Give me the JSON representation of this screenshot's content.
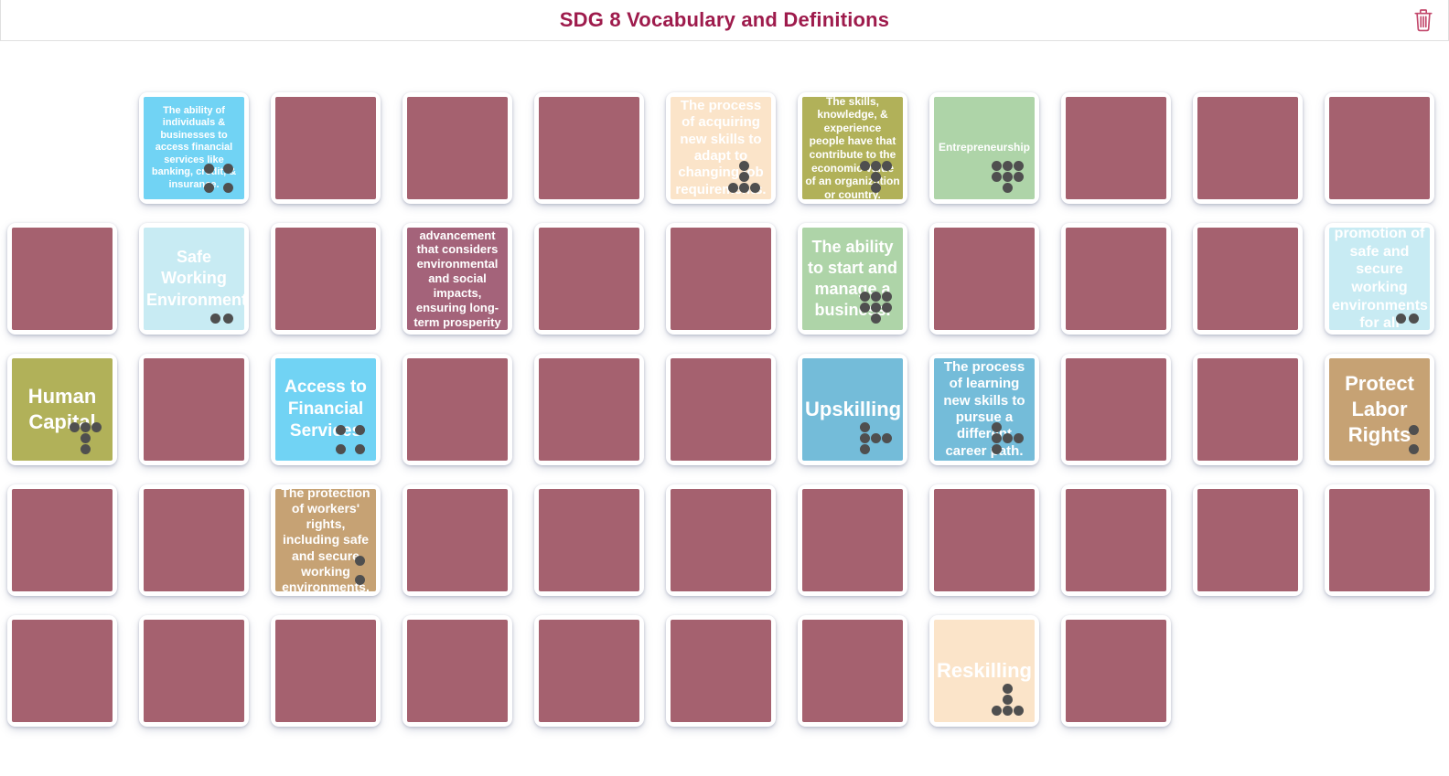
{
  "header": {
    "title": "SDG 8 Vocabulary and Definitions",
    "delete_label": "Delete board"
  },
  "colors": {
    "title": "#9E1B4C",
    "trash": "#C2476B",
    "card_back": "#A5616F",
    "card_text": "#FFFFFF",
    "dot": "#4F4F4F",
    "pair_cyan": "#71D3F4",
    "pair_light_cyan": "#C8EBF3",
    "pair_peach": "#FBE4C9",
    "pair_olive": "#B1B159",
    "pair_green": "#AED4A8",
    "pair_blue": "#74BCD9",
    "pair_tan": "#C6A274",
    "pair_mauve": "#A4637A"
  },
  "board": {
    "columns": 11,
    "rows": [
      {
        "cells": [
          {
            "type": "empty"
          },
          {
            "type": "up",
            "text": "The ability of individuals & businesses to access financial services like banking, credit, & insurance.",
            "bg": "#71D3F4",
            "size": 11,
            "kind": "def",
            "dots": "square-4"
          },
          {
            "type": "down"
          },
          {
            "type": "down"
          },
          {
            "type": "down"
          },
          {
            "type": "up",
            "text": "The process of acquiring new skills to adapt to changing job requirements.",
            "bg": "#FBE4C9",
            "size": 15,
            "kind": "def",
            "dots": "tee-up-5"
          },
          {
            "type": "up",
            "text": "The skills, knowledge, & experience people have that contribute to the economic value of an organization or country.",
            "bg": "#B1B159",
            "size": 12,
            "kind": "def",
            "dots": "tee-down-5"
          },
          {
            "type": "up",
            "text": "Entrepreneurship",
            "bg": "#AED4A8",
            "size": 12,
            "kind": "term",
            "dots": "triangle-7"
          },
          {
            "type": "down"
          },
          {
            "type": "down"
          },
          {
            "type": "down"
          }
        ]
      },
      {
        "cells": [
          {
            "type": "down"
          },
          {
            "type": "up",
            "text": "Safe Working Environments",
            "bg": "#C8EBF3",
            "size": 18,
            "kind": "term",
            "dots": "pair-horizontal"
          },
          {
            "type": "down"
          },
          {
            "type": "up",
            "text": "Economic advancement that considers environmental and social impacts, ensuring long-term prosperity for all.",
            "bg": "#A4637A",
            "size": 13,
            "kind": "def"
          },
          {
            "type": "down"
          },
          {
            "type": "down"
          },
          {
            "type": "up",
            "text": "The ability to start and manage a business.",
            "bg": "#AED4A8",
            "size": 18,
            "kind": "term",
            "dots": "triangle-7"
          },
          {
            "type": "down"
          },
          {
            "type": "down"
          },
          {
            "type": "down"
          },
          {
            "type": "up",
            "text": "The promotion of safe and secure working environments for all workers.",
            "bg": "#C8EBF3",
            "size": 16,
            "kind": "def",
            "dots": "pair-horizontal"
          }
        ]
      },
      {
        "cells": [
          {
            "type": "up",
            "text": "Human Capital",
            "bg": "#B1B159",
            "size": 22,
            "kind": "term",
            "dots": "tee-down-5"
          },
          {
            "type": "down"
          },
          {
            "type": "up",
            "text": "Access to Financial Services",
            "bg": "#71D3F4",
            "size": 19,
            "kind": "term",
            "dots": "square-4"
          },
          {
            "type": "down"
          },
          {
            "type": "down"
          },
          {
            "type": "down"
          },
          {
            "type": "up",
            "text": "Upskilling",
            "bg": "#74BCD9",
            "size": 22,
            "kind": "term",
            "dots": "tee-right-5"
          },
          {
            "type": "up",
            "text": "The process of learning new skills to pursue a different career path.",
            "bg": "#74BCD9",
            "size": 15,
            "kind": "def",
            "dots": "tee-right-5"
          },
          {
            "type": "down"
          },
          {
            "type": "down"
          },
          {
            "type": "up",
            "text": "Protect Labor Rights",
            "bg": "#C6A274",
            "size": 22,
            "kind": "term",
            "dots": "pair-vertical"
          }
        ]
      },
      {
        "cells": [
          {
            "type": "down"
          },
          {
            "type": "down"
          },
          {
            "type": "up",
            "text": "The protection of workers' rights, including safe and secure working environments.",
            "bg": "#C6A274",
            "size": 14,
            "kind": "def",
            "dots": "pair-vertical"
          },
          {
            "type": "down"
          },
          {
            "type": "down"
          },
          {
            "type": "down"
          },
          {
            "type": "down"
          },
          {
            "type": "down"
          },
          {
            "type": "down"
          },
          {
            "type": "down"
          },
          {
            "type": "down"
          }
        ]
      },
      {
        "cells": [
          {
            "type": "down"
          },
          {
            "type": "down"
          },
          {
            "type": "down"
          },
          {
            "type": "down"
          },
          {
            "type": "down"
          },
          {
            "type": "down"
          },
          {
            "type": "down"
          },
          {
            "type": "up",
            "text": "Reskilling",
            "bg": "#FBE4C9",
            "size": 22,
            "kind": "term",
            "dots": "tee-up-5"
          },
          {
            "type": "down"
          }
        ]
      }
    ]
  }
}
